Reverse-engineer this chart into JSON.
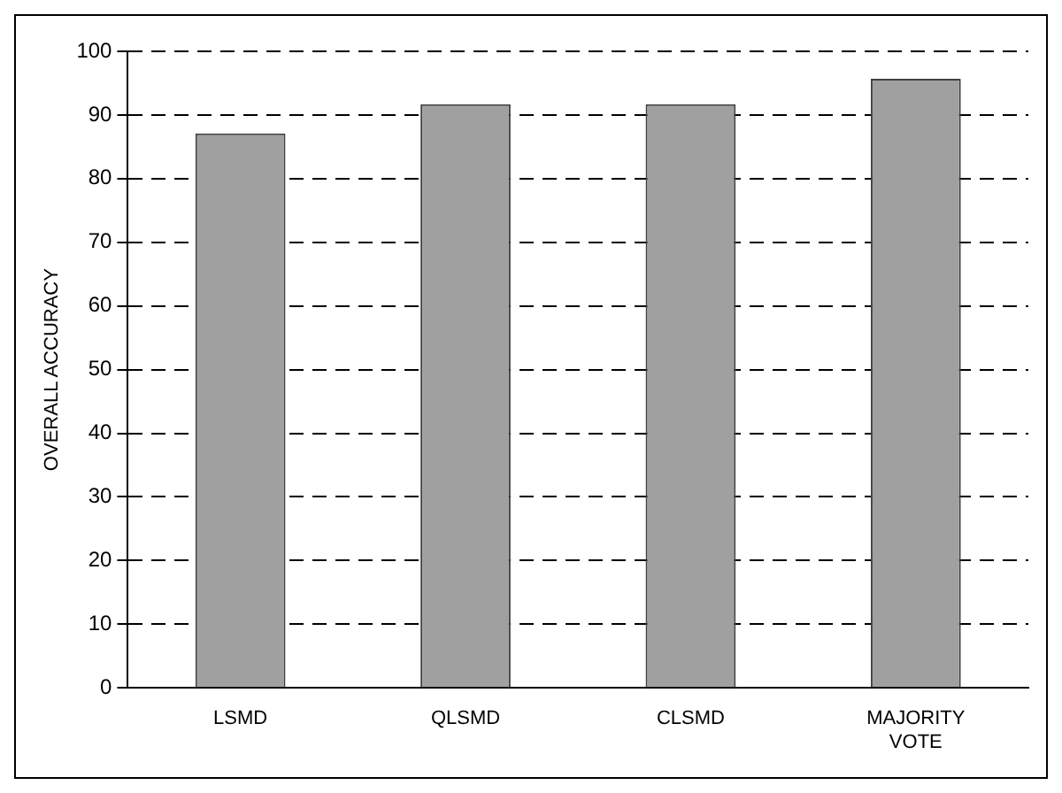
{
  "chart_data": {
    "type": "bar",
    "ylabel": "OVERALL ACCURACY",
    "categories": [
      "LSMD",
      "QLSMD",
      "CLSMD",
      "MAJORITY VOTE"
    ],
    "values": [
      87.1,
      91.7,
      91.7,
      95.7
    ],
    "color": "#a0a0a0",
    "ylim": [
      0,
      100
    ],
    "yticks": [
      0,
      10,
      20,
      30,
      40,
      50,
      60,
      70,
      80,
      90,
      100
    ],
    "grid": "y",
    "legend": false
  }
}
